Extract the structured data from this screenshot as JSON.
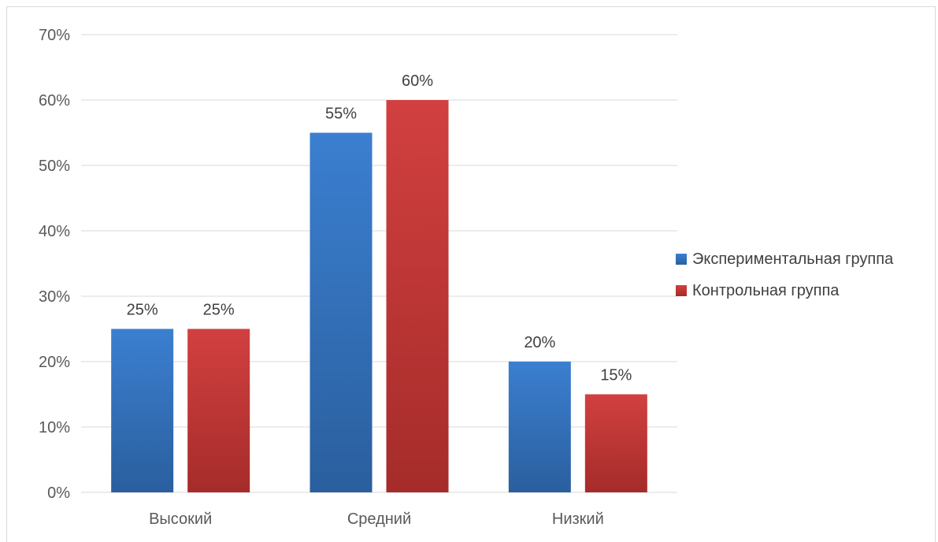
{
  "chart_data": {
    "type": "bar",
    "title": "",
    "xlabel": "",
    "ylabel": "",
    "categories": [
      "Высокий",
      "Средний",
      "Низкий"
    ],
    "series": [
      {
        "name": "Экспериментальная группа",
        "values": [
          25,
          55,
          20
        ],
        "labels": [
          "25%",
          "55%",
          "20%"
        ],
        "color_top": "#3b7fd0",
        "color_bottom": "#2a5f9e"
      },
      {
        "name": "Контрольная группа",
        "values": [
          25,
          60,
          15
        ],
        "labels": [
          "25%",
          "60%",
          "15%"
        ],
        "color_top": "#d24040",
        "color_bottom": "#a52c2a"
      }
    ],
    "ylim": [
      0,
      70
    ],
    "yticks": [
      0,
      10,
      20,
      30,
      40,
      50,
      60,
      70
    ],
    "ytick_labels": [
      "0%",
      "10%",
      "20%",
      "30%",
      "40%",
      "50%",
      "60%",
      "70%"
    ],
    "grid": true,
    "legend_position": "right"
  }
}
